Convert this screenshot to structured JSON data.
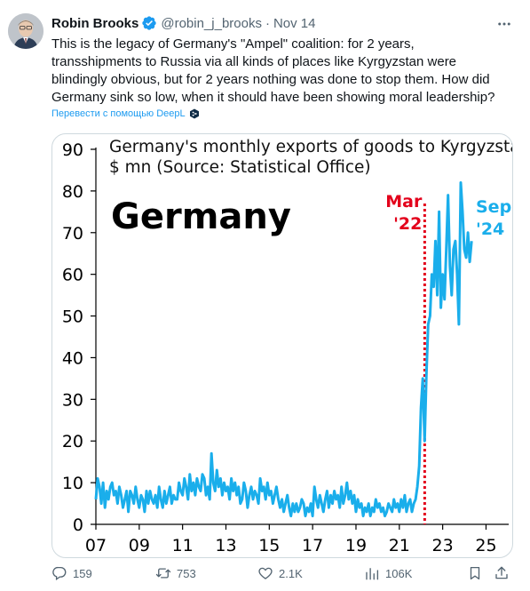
{
  "tweet": {
    "author_name": "Robin Brooks",
    "handle": "@robin_j_brooks",
    "separator": "·",
    "time": "Nov 14",
    "text_lines": [
      "This is the legacy of Germany's \"Ampel\" coalition: for 2 years,",
      "transshipments to Russia via all kinds of places like Kyrgyzstan were",
      "blindingly obvious, but for 2 years nothing was done to stop them. How did",
      "Germany sink so low, when it should have been showing moral leadership?"
    ],
    "translate_label": "Перевести с помощью DeepL"
  },
  "icons": {
    "verified": "verified-badge-icon",
    "more": "more-dots-icon",
    "deepl": "deepl-icon",
    "reply": "reply-icon",
    "retweet": "retweet-icon",
    "like": "heart-icon",
    "views": "views-chart-icon",
    "bookmark": "bookmark-icon",
    "share": "share-icon"
  },
  "colors": {
    "accent": "#1d9bf0",
    "series": "#1aaeeb",
    "marker": "#e3001b",
    "text": "#0f1419",
    "muted": "#536471"
  },
  "actions": {
    "replies": "159",
    "retweets": "753",
    "likes": "2.1K",
    "views": "106K"
  },
  "chart_data": {
    "type": "line",
    "title_lines": [
      "Germany's monthly exports of goods to Kyrgyzstan, in",
      "$ mn (Source: Statistical Office)"
    ],
    "big_label": "Germany",
    "xlim": [
      2007,
      2025.8
    ],
    "ylim": [
      0,
      90
    ],
    "x_ticks": [
      2007,
      2009,
      2011,
      2013,
      2015,
      2017,
      2019,
      2021,
      2023,
      2025
    ],
    "x_tick_labels": [
      "07",
      "09",
      "11",
      "13",
      "15",
      "17",
      "19",
      "21",
      "23",
      "25"
    ],
    "y_ticks": [
      0,
      10,
      20,
      30,
      40,
      50,
      60,
      70,
      80,
      90
    ],
    "y_tick_labels": [
      "0",
      "10",
      "20",
      "30",
      "40",
      "50",
      "60",
      "70",
      "80",
      "90"
    ],
    "grid": false,
    "annotations": [
      {
        "x": 2022.17,
        "lines": [
          "Mar",
          "'22"
        ],
        "color": "#e3001b",
        "vline": true
      },
      {
        "x": 2024.67,
        "lines": [
          "Sep",
          "'24"
        ],
        "color": "#1aaeeb",
        "vline": false
      }
    ],
    "series": [
      {
        "x_start": 2007.0,
        "x_step": 0.08333,
        "values": [
          6,
          11,
          9,
          5,
          10,
          4,
          8,
          6,
          9,
          10,
          7,
          8,
          5,
          9,
          7,
          4,
          6,
          8,
          3,
          8,
          7,
          5,
          9,
          6,
          4,
          7,
          6,
          3,
          8,
          5,
          8,
          6,
          5,
          7,
          4,
          9,
          6,
          4,
          8,
          5,
          7,
          9,
          5,
          7,
          6,
          6,
          10,
          8,
          7,
          11,
          9,
          6,
          12,
          8,
          10,
          7,
          11,
          9,
          8,
          12,
          11,
          7,
          9,
          6,
          17,
          10,
          8,
          13,
          9,
          11,
          7,
          10,
          8,
          9,
          6,
          11,
          8,
          10,
          7,
          9,
          5,
          6,
          10,
          8,
          4,
          7,
          9,
          6,
          8,
          7,
          5,
          11,
          8,
          9,
          6,
          10,
          7,
          8,
          5,
          7,
          9,
          6,
          4,
          6,
          3,
          5,
          7,
          4,
          2,
          5,
          3,
          5,
          3,
          4,
          6,
          5,
          2,
          4,
          3,
          5,
          2,
          9,
          6,
          4,
          7,
          5,
          3,
          6,
          8,
          4,
          7,
          5,
          8,
          6,
          7,
          4,
          9,
          5,
          7,
          10,
          6,
          8,
          5,
          7,
          3,
          6,
          4,
          5,
          2,
          4,
          3,
          5,
          2,
          4,
          3,
          6,
          4,
          5,
          3,
          4,
          2,
          3,
          5,
          4,
          3,
          6,
          4,
          5,
          3,
          6,
          4,
          7,
          3,
          5,
          6,
          3,
          5,
          6,
          9,
          14,
          28,
          35,
          20,
          36,
          48,
          50,
          60,
          57,
          68,
          55,
          75,
          52,
          60,
          54,
          66,
          79,
          62,
          55,
          66,
          68,
          60,
          48,
          82,
          75,
          66,
          64,
          70,
          63,
          68
        ]
      }
    ]
  }
}
